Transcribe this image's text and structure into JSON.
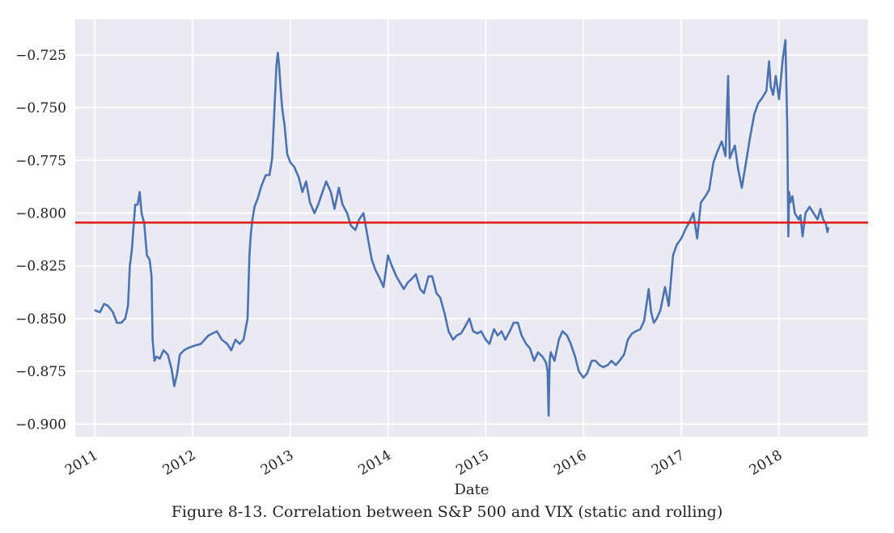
{
  "chart_data": {
    "type": "line",
    "xlabel": "Date",
    "ylabel": "",
    "xlim": [
      "2010-10-20",
      "2018-11-30"
    ],
    "ylim": [
      -0.906,
      -0.7082
    ],
    "x_ticks": [
      "2011",
      "2012",
      "2013",
      "2014",
      "2015",
      "2016",
      "2017",
      "2018"
    ],
    "y_ticks": [
      -0.725,
      -0.75,
      -0.775,
      -0.8,
      -0.825,
      -0.85,
      -0.875,
      -0.9
    ],
    "y_tick_labels": [
      "−0.725",
      "−0.750",
      "−0.775",
      "−0.800",
      "−0.825",
      "−0.850",
      "−0.875",
      "−0.900"
    ],
    "grid": true,
    "background": "#eaeaf2",
    "series": [
      {
        "color": "#4c72b0",
        "x": [
          "2011-01-01",
          "2011-01-20",
          "2011-02-05",
          "2011-02-20",
          "2011-03-10",
          "2011-03-25",
          "2011-04-10",
          "2011-04-25",
          "2011-05-05",
          "2011-05-12",
          "2011-05-20",
          "2011-06-01",
          "2011-06-10",
          "2011-06-18",
          "2011-06-25",
          "2011-07-05",
          "2011-07-15",
          "2011-07-25",
          "2011-08-01",
          "2011-08-05",
          "2011-08-12",
          "2011-08-20",
          "2011-09-01",
          "2011-09-15",
          "2011-10-01",
          "2011-10-15",
          "2011-10-25",
          "2011-11-05",
          "2011-11-15",
          "2011-12-01",
          "2011-12-15",
          "2012-01-05",
          "2012-02-01",
          "2012-03-01",
          "2012-04-01",
          "2012-04-20",
          "2012-05-10",
          "2012-05-25",
          "2012-06-10",
          "2012-06-25",
          "2012-07-10",
          "2012-07-25",
          "2012-08-01",
          "2012-08-06",
          "2012-08-12",
          "2012-08-20",
          "2012-09-01",
          "2012-09-15",
          "2012-10-01",
          "2012-10-15",
          "2012-10-25",
          "2012-11-01",
          "2012-11-10",
          "2012-11-15",
          "2012-11-20",
          "2012-11-25",
          "2012-12-01",
          "2012-12-10",
          "2012-12-20",
          "2013-01-01",
          "2013-01-15",
          "2013-02-01",
          "2013-02-15",
          "2013-03-01",
          "2013-03-15",
          "2013-04-01",
          "2013-04-15",
          "2013-05-01",
          "2013-05-15",
          "2013-06-01",
          "2013-06-15",
          "2013-07-01",
          "2013-07-15",
          "2013-08-01",
          "2013-08-15",
          "2013-09-01",
          "2013-09-15",
          "2013-10-01",
          "2013-10-15",
          "2013-11-01",
          "2013-11-15",
          "2013-12-01",
          "2013-12-15",
          "2014-01-01",
          "2014-01-15",
          "2014-02-01",
          "2014-02-15",
          "2014-03-01",
          "2014-03-15",
          "2014-04-01",
          "2014-04-15",
          "2014-05-01",
          "2014-05-15",
          "2014-06-01",
          "2014-06-15",
          "2014-07-01",
          "2014-07-15",
          "2014-08-01",
          "2014-08-15",
          "2014-09-01",
          "2014-09-15",
          "2014-10-01",
          "2014-10-15",
          "2014-11-01",
          "2014-11-15",
          "2014-12-01",
          "2014-12-15",
          "2015-01-01",
          "2015-01-15",
          "2015-02-01",
          "2015-02-15",
          "2015-03-01",
          "2015-03-15",
          "2015-04-01",
          "2015-04-15",
          "2015-05-01",
          "2015-05-15",
          "2015-06-01",
          "2015-06-15",
          "2015-07-01",
          "2015-07-15",
          "2015-08-01",
          "2015-08-15",
          "2015-08-20",
          "2015-08-24",
          "2015-08-28",
          "2015-09-01",
          "2015-09-15",
          "2015-10-01",
          "2015-10-15",
          "2015-11-01",
          "2015-11-15",
          "2015-12-01",
          "2015-12-15",
          "2016-01-01",
          "2016-01-15",
          "2016-02-01",
          "2016-02-15",
          "2016-03-01",
          "2016-03-15",
          "2016-04-01",
          "2016-04-15",
          "2016-05-01",
          "2016-05-15",
          "2016-06-01",
          "2016-06-15",
          "2016-07-01",
          "2016-07-15",
          "2016-08-01",
          "2016-08-15",
          "2016-09-01",
          "2016-09-10",
          "2016-09-20",
          "2016-10-01",
          "2016-10-15",
          "2016-11-01",
          "2016-11-15",
          "2016-12-01",
          "2016-12-15",
          "2017-01-01",
          "2017-01-15",
          "2017-02-01",
          "2017-02-15",
          "2017-03-01",
          "2017-03-15",
          "2017-04-01",
          "2017-04-15",
          "2017-05-01",
          "2017-05-15",
          "2017-06-01",
          "2017-06-15",
          "2017-06-25",
          "2017-07-01",
          "2017-07-10",
          "2017-07-20",
          "2017-08-01",
          "2017-08-15",
          "2017-09-01",
          "2017-09-15",
          "2017-10-01",
          "2017-10-15",
          "2017-11-01",
          "2017-11-15",
          "2017-11-25",
          "2017-12-01",
          "2017-12-10",
          "2017-12-20",
          "2018-01-01",
          "2018-01-15",
          "2018-01-25",
          "2018-02-01",
          "2018-02-05",
          "2018-02-08",
          "2018-02-12",
          "2018-02-20",
          "2018-03-01",
          "2018-03-15",
          "2018-03-22",
          "2018-03-30",
          "2018-04-10",
          "2018-04-25",
          "2018-05-10",
          "2018-05-25",
          "2018-06-05",
          "2018-06-15",
          "2018-06-25",
          "2018-07-01",
          "2018-07-05"
        ],
        "y": [
          -0.846,
          -0.847,
          -0.843,
          -0.844,
          -0.847,
          -0.852,
          -0.852,
          -0.85,
          -0.844,
          -0.825,
          -0.817,
          -0.796,
          -0.796,
          -0.79,
          -0.8,
          -0.805,
          -0.82,
          -0.822,
          -0.83,
          -0.86,
          -0.87,
          -0.868,
          -0.869,
          -0.865,
          -0.867,
          -0.874,
          -0.882,
          -0.876,
          -0.867,
          -0.865,
          -0.864,
          -0.863,
          -0.862,
          -0.858,
          -0.856,
          -0.86,
          -0.862,
          -0.865,
          -0.86,
          -0.862,
          -0.86,
          -0.85,
          -0.82,
          -0.81,
          -0.803,
          -0.797,
          -0.793,
          -0.787,
          -0.782,
          -0.782,
          -0.774,
          -0.755,
          -0.73,
          -0.724,
          -0.73,
          -0.74,
          -0.75,
          -0.758,
          -0.772,
          -0.776,
          -0.778,
          -0.783,
          -0.79,
          -0.785,
          -0.795,
          -0.8,
          -0.796,
          -0.79,
          -0.785,
          -0.79,
          -0.798,
          -0.788,
          -0.796,
          -0.8,
          -0.806,
          -0.808,
          -0.803,
          -0.8,
          -0.81,
          -0.822,
          -0.827,
          -0.831,
          -0.835,
          -0.82,
          -0.825,
          -0.83,
          -0.833,
          -0.836,
          -0.833,
          -0.831,
          -0.829,
          -0.836,
          -0.838,
          -0.83,
          -0.83,
          -0.838,
          -0.84,
          -0.848,
          -0.856,
          -0.86,
          -0.858,
          -0.857,
          -0.854,
          -0.85,
          -0.856,
          -0.857,
          -0.856,
          -0.86,
          -0.862,
          -0.855,
          -0.858,
          -0.856,
          -0.86,
          -0.856,
          -0.852,
          -0.852,
          -0.858,
          -0.862,
          -0.864,
          -0.87,
          -0.866,
          -0.868,
          -0.871,
          -0.875,
          -0.896,
          -0.87,
          -0.866,
          -0.87,
          -0.86,
          -0.856,
          -0.858,
          -0.862,
          -0.868,
          -0.875,
          -0.878,
          -0.876,
          -0.87,
          -0.87,
          -0.872,
          -0.873,
          -0.872,
          -0.87,
          -0.872,
          -0.87,
          -0.867,
          -0.86,
          -0.857,
          -0.856,
          -0.855,
          -0.851,
          -0.836,
          -0.847,
          -0.852,
          -0.85,
          -0.846,
          -0.835,
          -0.844,
          -0.82,
          -0.815,
          -0.812,
          -0.808,
          -0.804,
          -0.8,
          -0.812,
          -0.795,
          -0.792,
          -0.789,
          -0.776,
          -0.771,
          -0.766,
          -0.773,
          -0.735,
          -0.774,
          -0.771,
          -0.768,
          -0.779,
          -0.788,
          -0.775,
          -0.764,
          -0.753,
          -0.748,
          -0.745,
          -0.742,
          -0.728,
          -0.74,
          -0.744,
          -0.735,
          -0.746,
          -0.727,
          -0.718,
          -0.76,
          -0.811,
          -0.79,
          -0.795,
          -0.792,
          -0.8,
          -0.803,
          -0.801,
          -0.811,
          -0.8,
          -0.797,
          -0.8,
          -0.803,
          -0.798,
          -0.803,
          -0.805,
          -0.809,
          -0.807
        ]
      }
    ],
    "hlines": [
      {
        "y": -0.8045,
        "color": "#e41a1c"
      }
    ]
  },
  "caption": "Figure 8-13. Correlation between S&P 500 and VIX (static and rolling)"
}
